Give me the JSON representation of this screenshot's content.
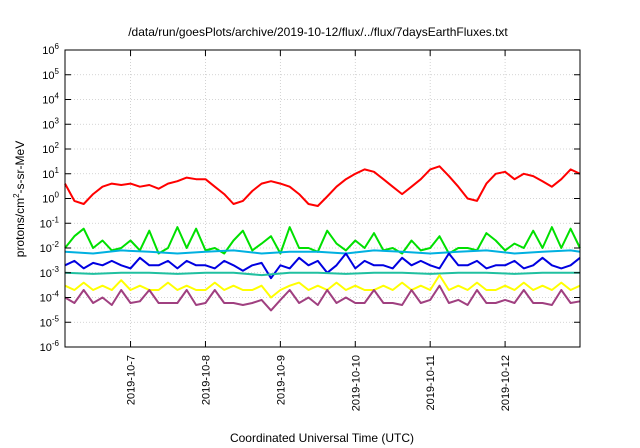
{
  "chart_data": {
    "type": "line",
    "title": "/data/run/goesPlots/archive/2019-10-12/flux/../flux/7daysEarthFluxes.txt",
    "xlabel": "Coordinated Universal Time (UTC)",
    "ylabel": {
      "prefix": "protons/cm",
      "sup": "2",
      "suffix": "-s-sr-MeV"
    },
    "yscale": "log",
    "ylim": [
      1e-06,
      1000000.0
    ],
    "xlim": [
      "2019-10-06T03:00",
      "2019-10-13T00:00"
    ],
    "x_tick_labels": [
      "2019-10-7",
      "2019-10-8",
      "2019-10-9",
      "2019-10-10",
      "2019-10-11",
      "2019-10-12"
    ],
    "y_tick_labels": [
      {
        "base": "10",
        "exp": "6"
      },
      {
        "base": "10",
        "exp": "5"
      },
      {
        "base": "10",
        "exp": "4"
      },
      {
        "base": "10",
        "exp": "3"
      },
      {
        "base": "10",
        "exp": "2"
      },
      {
        "base": "10",
        "exp": "1"
      },
      {
        "base": "10",
        "exp": "0"
      },
      {
        "base": "10",
        "exp": "-1"
      },
      {
        "base": "10",
        "exp": "-2"
      },
      {
        "base": "10",
        "exp": "-3"
      },
      {
        "base": "10",
        "exp": "-4"
      },
      {
        "base": "10",
        "exp": "-5"
      },
      {
        "base": "10",
        "exp": "-6"
      }
    ],
    "grid": true,
    "series": [
      {
        "color": "#ff0000",
        "x": [
          "2019-10-06T03:00",
          "2019-10-06T06:00",
          "2019-10-06T09:00",
          "2019-10-06T12:00",
          "2019-10-06T15:00",
          "2019-10-06T18:00",
          "2019-10-06T21:00",
          "2019-10-07T00:00",
          "2019-10-07T03:00",
          "2019-10-07T06:00",
          "2019-10-07T09:00",
          "2019-10-07T12:00",
          "2019-10-07T15:00",
          "2019-10-07T18:00",
          "2019-10-07T21:00",
          "2019-10-08T00:00",
          "2019-10-08T03:00",
          "2019-10-08T06:00",
          "2019-10-08T09:00",
          "2019-10-08T12:00",
          "2019-10-08T15:00",
          "2019-10-08T18:00",
          "2019-10-08T21:00",
          "2019-10-09T00:00",
          "2019-10-09T03:00",
          "2019-10-09T06:00",
          "2019-10-09T09:00",
          "2019-10-09T12:00",
          "2019-10-09T15:00",
          "2019-10-09T18:00",
          "2019-10-09T21:00",
          "2019-10-10T00:00",
          "2019-10-10T03:00",
          "2019-10-10T06:00",
          "2019-10-10T09:00",
          "2019-10-10T12:00",
          "2019-10-10T15:00",
          "2019-10-10T18:00",
          "2019-10-10T21:00",
          "2019-10-11T00:00",
          "2019-10-11T03:00",
          "2019-10-11T06:00",
          "2019-10-11T09:00",
          "2019-10-11T12:00",
          "2019-10-11T15:00",
          "2019-10-11T18:00",
          "2019-10-11T21:00",
          "2019-10-12T00:00",
          "2019-10-12T03:00",
          "2019-10-12T06:00",
          "2019-10-12T09:00",
          "2019-10-12T12:00",
          "2019-10-12T15:00",
          "2019-10-12T18:00",
          "2019-10-12T21:00",
          "2019-10-13T00:00"
        ],
        "y": [
          4,
          0.8,
          0.6,
          1.5,
          3,
          4,
          3.5,
          4,
          3,
          3.5,
          2.5,
          4,
          5,
          7,
          6,
          6,
          3,
          1.5,
          0.6,
          0.8,
          2,
          4,
          5,
          4,
          3,
          1.5,
          0.6,
          0.5,
          1.2,
          3,
          6,
          10,
          15,
          12,
          6,
          3,
          1.5,
          3,
          6,
          15,
          20,
          8,
          3,
          1,
          0.8,
          4,
          10,
          12,
          6,
          10,
          8,
          5,
          3,
          6,
          15,
          10
        ]
      },
      {
        "color": "#00e000",
        "x": [
          "2019-10-06T03:00",
          "2019-10-06T06:00",
          "2019-10-06T09:00",
          "2019-10-06T12:00",
          "2019-10-06T15:00",
          "2019-10-06T18:00",
          "2019-10-06T21:00",
          "2019-10-07T00:00",
          "2019-10-07T03:00",
          "2019-10-07T06:00",
          "2019-10-07T09:00",
          "2019-10-07T12:00",
          "2019-10-07T15:00",
          "2019-10-07T18:00",
          "2019-10-07T21:00",
          "2019-10-08T00:00",
          "2019-10-08T03:00",
          "2019-10-08T06:00",
          "2019-10-08T09:00",
          "2019-10-08T12:00",
          "2019-10-08T15:00",
          "2019-10-08T18:00",
          "2019-10-08T21:00",
          "2019-10-09T00:00",
          "2019-10-09T03:00",
          "2019-10-09T06:00",
          "2019-10-09T09:00",
          "2019-10-09T12:00",
          "2019-10-09T15:00",
          "2019-10-09T18:00",
          "2019-10-09T21:00",
          "2019-10-10T00:00",
          "2019-10-10T03:00",
          "2019-10-10T06:00",
          "2019-10-10T09:00",
          "2019-10-10T12:00",
          "2019-10-10T15:00",
          "2019-10-10T18:00",
          "2019-10-10T21:00",
          "2019-10-11T00:00",
          "2019-10-11T03:00",
          "2019-10-11T06:00",
          "2019-10-11T09:00",
          "2019-10-11T12:00",
          "2019-10-11T15:00",
          "2019-10-11T18:00",
          "2019-10-11T21:00",
          "2019-10-12T00:00",
          "2019-10-12T03:00",
          "2019-10-12T06:00",
          "2019-10-12T09:00",
          "2019-10-12T12:00",
          "2019-10-12T15:00",
          "2019-10-12T18:00",
          "2019-10-12T21:00",
          "2019-10-13T00:00"
        ],
        "y": [
          0.01,
          0.03,
          0.06,
          0.01,
          0.02,
          0.008,
          0.01,
          0.02,
          0.008,
          0.05,
          0.006,
          0.01,
          0.07,
          0.01,
          0.06,
          0.008,
          0.01,
          0.006,
          0.02,
          0.05,
          0.008,
          0.015,
          0.03,
          0.006,
          0.07,
          0.01,
          0.01,
          0.007,
          0.05,
          0.015,
          0.008,
          0.02,
          0.01,
          0.04,
          0.008,
          0.01,
          0.006,
          0.02,
          0.008,
          0.01,
          0.03,
          0.006,
          0.01,
          0.01,
          0.008,
          0.04,
          0.02,
          0.008,
          0.015,
          0.01,
          0.05,
          0.01,
          0.07,
          0.01,
          0.06,
          0.01
        ]
      },
      {
        "color": "#00b0e0",
        "x": [
          "2019-10-06T03:00",
          "2019-10-06T12:00",
          "2019-10-06T21:00",
          "2019-10-07T06:00",
          "2019-10-07T15:00",
          "2019-10-08T00:00",
          "2019-10-08T09:00",
          "2019-10-08T18:00",
          "2019-10-09T03:00",
          "2019-10-09T12:00",
          "2019-10-09T21:00",
          "2019-10-10T06:00",
          "2019-10-10T15:00",
          "2019-10-11T00:00",
          "2019-10-11T09:00",
          "2019-10-11T18:00",
          "2019-10-12T03:00",
          "2019-10-12T12:00",
          "2019-10-12T21:00",
          "2019-10-13T00:00"
        ],
        "y": [
          0.007,
          0.006,
          0.008,
          0.007,
          0.006,
          0.007,
          0.008,
          0.006,
          0.007,
          0.007,
          0.006,
          0.008,
          0.007,
          0.006,
          0.007,
          0.008,
          0.006,
          0.007,
          0.008,
          0.007
        ]
      },
      {
        "color": "#0000e0",
        "x": [
          "2019-10-06T03:00",
          "2019-10-06T06:00",
          "2019-10-06T09:00",
          "2019-10-06T12:00",
          "2019-10-06T15:00",
          "2019-10-06T18:00",
          "2019-10-06T21:00",
          "2019-10-07T00:00",
          "2019-10-07T03:00",
          "2019-10-07T06:00",
          "2019-10-07T09:00",
          "2019-10-07T12:00",
          "2019-10-07T15:00",
          "2019-10-07T18:00",
          "2019-10-07T21:00",
          "2019-10-08T00:00",
          "2019-10-08T03:00",
          "2019-10-08T06:00",
          "2019-10-08T09:00",
          "2019-10-08T12:00",
          "2019-10-08T15:00",
          "2019-10-08T18:00",
          "2019-10-08T21:00",
          "2019-10-09T00:00",
          "2019-10-09T03:00",
          "2019-10-09T06:00",
          "2019-10-09T09:00",
          "2019-10-09T12:00",
          "2019-10-09T15:00",
          "2019-10-09T18:00",
          "2019-10-09T21:00",
          "2019-10-10T00:00",
          "2019-10-10T03:00",
          "2019-10-10T06:00",
          "2019-10-10T09:00",
          "2019-10-10T12:00",
          "2019-10-10T15:00",
          "2019-10-10T18:00",
          "2019-10-10T21:00",
          "2019-10-11T00:00",
          "2019-10-11T03:00",
          "2019-10-11T06:00",
          "2019-10-11T09:00",
          "2019-10-11T12:00",
          "2019-10-11T15:00",
          "2019-10-11T18:00",
          "2019-10-11T21:00",
          "2019-10-12T00:00",
          "2019-10-12T03:00",
          "2019-10-12T06:00",
          "2019-10-12T09:00",
          "2019-10-12T12:00",
          "2019-10-12T15:00",
          "2019-10-12T18:00",
          "2019-10-12T21:00",
          "2019-10-13T00:00"
        ],
        "y": [
          0.002,
          0.003,
          0.0015,
          0.0025,
          0.002,
          0.003,
          0.002,
          0.0015,
          0.004,
          0.002,
          0.002,
          0.003,
          0.0015,
          0.003,
          0.002,
          0.002,
          0.0015,
          0.003,
          0.002,
          0.0012,
          0.002,
          0.0025,
          0.0006,
          0.002,
          0.0015,
          0.004,
          0.002,
          0.003,
          0.001,
          0.002,
          0.006,
          0.0015,
          0.003,
          0.002,
          0.002,
          0.0015,
          0.004,
          0.002,
          0.003,
          0.002,
          0.0015,
          0.006,
          0.002,
          0.002,
          0.003,
          0.0015,
          0.002,
          0.002,
          0.003,
          0.0015,
          0.002,
          0.004,
          0.002,
          0.0015,
          0.002,
          0.004
        ]
      },
      {
        "color": "#20c0a0",
        "x": [
          "2019-10-06T03:00",
          "2019-10-06T12:00",
          "2019-10-06T21:00",
          "2019-10-07T06:00",
          "2019-10-07T15:00",
          "2019-10-08T00:00",
          "2019-10-08T09:00",
          "2019-10-08T18:00",
          "2019-10-09T03:00",
          "2019-10-09T12:00",
          "2019-10-09T21:00",
          "2019-10-10T06:00",
          "2019-10-10T15:00",
          "2019-10-11T00:00",
          "2019-10-11T09:00",
          "2019-10-11T18:00",
          "2019-10-12T03:00",
          "2019-10-12T12:00",
          "2019-10-12T21:00",
          "2019-10-13T00:00"
        ],
        "y": [
          0.001,
          0.0009,
          0.001,
          0.001,
          0.0009,
          0.001,
          0.001,
          0.0008,
          0.001,
          0.001,
          0.0009,
          0.001,
          0.001,
          0.0009,
          0.001,
          0.001,
          0.0009,
          0.001,
          0.001,
          0.001
        ]
      },
      {
        "color": "#ffff00",
        "x": [
          "2019-10-06T03:00",
          "2019-10-06T06:00",
          "2019-10-06T09:00",
          "2019-10-06T12:00",
          "2019-10-06T15:00",
          "2019-10-06T18:00",
          "2019-10-06T21:00",
          "2019-10-07T00:00",
          "2019-10-07T03:00",
          "2019-10-07T06:00",
          "2019-10-07T09:00",
          "2019-10-07T12:00",
          "2019-10-07T15:00",
          "2019-10-07T18:00",
          "2019-10-07T21:00",
          "2019-10-08T00:00",
          "2019-10-08T03:00",
          "2019-10-08T06:00",
          "2019-10-08T09:00",
          "2019-10-08T12:00",
          "2019-10-08T15:00",
          "2019-10-08T18:00",
          "2019-10-08T21:00",
          "2019-10-09T00:00",
          "2019-10-09T03:00",
          "2019-10-09T06:00",
          "2019-10-09T09:00",
          "2019-10-09T12:00",
          "2019-10-09T15:00",
          "2019-10-09T18:00",
          "2019-10-09T21:00",
          "2019-10-10T00:00",
          "2019-10-10T03:00",
          "2019-10-10T06:00",
          "2019-10-10T09:00",
          "2019-10-10T12:00",
          "2019-10-10T15:00",
          "2019-10-10T18:00",
          "2019-10-10T21:00",
          "2019-10-11T00:00",
          "2019-10-11T03:00",
          "2019-10-11T06:00",
          "2019-10-11T09:00",
          "2019-10-11T12:00",
          "2019-10-11T15:00",
          "2019-10-11T18:00",
          "2019-10-11T21:00",
          "2019-10-12T00:00",
          "2019-10-12T03:00",
          "2019-10-12T06:00",
          "2019-10-12T09:00",
          "2019-10-12T12:00",
          "2019-10-12T15:00",
          "2019-10-12T18:00",
          "2019-10-12T21:00",
          "2019-10-13T00:00"
        ],
        "y": [
          0.0003,
          0.0002,
          0.0004,
          0.0002,
          0.0003,
          0.0002,
          0.0005,
          0.0002,
          0.0003,
          0.0002,
          0.0002,
          0.0004,
          0.0002,
          0.0003,
          0.0002,
          0.0002,
          0.0004,
          0.0002,
          0.0003,
          0.0002,
          0.0002,
          0.0003,
          0.0001,
          0.0002,
          0.0003,
          0.0004,
          0.0002,
          0.0003,
          0.0002,
          0.0004,
          0.0002,
          0.0003,
          0.0002,
          0.0002,
          0.0003,
          0.0002,
          0.0004,
          0.0002,
          0.0003,
          0.0002,
          0.0008,
          0.0002,
          0.0003,
          0.0002,
          0.0004,
          0.0002,
          0.0002,
          0.0003,
          0.0002,
          0.0004,
          0.0002,
          0.0003,
          0.0002,
          0.0004,
          0.0002,
          0.0003
        ]
      },
      {
        "color": "#a04080",
        "x": [
          "2019-10-06T03:00",
          "2019-10-06T06:00",
          "2019-10-06T09:00",
          "2019-10-06T12:00",
          "2019-10-06T15:00",
          "2019-10-06T18:00",
          "2019-10-06T21:00",
          "2019-10-07T00:00",
          "2019-10-07T03:00",
          "2019-10-07T06:00",
          "2019-10-07T09:00",
          "2019-10-07T12:00",
          "2019-10-07T15:00",
          "2019-10-07T18:00",
          "2019-10-07T21:00",
          "2019-10-08T00:00",
          "2019-10-08T03:00",
          "2019-10-08T06:00",
          "2019-10-08T09:00",
          "2019-10-08T12:00",
          "2019-10-08T15:00",
          "2019-10-08T18:00",
          "2019-10-08T21:00",
          "2019-10-09T00:00",
          "2019-10-09T03:00",
          "2019-10-09T06:00",
          "2019-10-09T09:00",
          "2019-10-09T12:00",
          "2019-10-09T15:00",
          "2019-10-09T18:00",
          "2019-10-09T21:00",
          "2019-10-10T00:00",
          "2019-10-10T03:00",
          "2019-10-10T06:00",
          "2019-10-10T09:00",
          "2019-10-10T12:00",
          "2019-10-10T15:00",
          "2019-10-10T18:00",
          "2019-10-10T21:00",
          "2019-10-11T00:00",
          "2019-10-11T03:00",
          "2019-10-11T06:00",
          "2019-10-11T09:00",
          "2019-10-11T12:00",
          "2019-10-11T15:00",
          "2019-10-11T18:00",
          "2019-10-11T21:00",
          "2019-10-12T00:00",
          "2019-10-12T03:00",
          "2019-10-12T06:00",
          "2019-10-12T09:00",
          "2019-10-12T12:00",
          "2019-10-12T15:00",
          "2019-10-12T18:00",
          "2019-10-12T21:00",
          "2019-10-13T00:00"
        ],
        "y": [
          0.0001,
          6e-05,
          0.0002,
          6e-05,
          0.0001,
          5e-05,
          0.0002,
          6e-05,
          7e-05,
          0.0002,
          6e-05,
          6e-05,
          6e-05,
          0.0002,
          5e-05,
          6e-05,
          0.0002,
          6e-05,
          6e-05,
          5e-05,
          6e-05,
          8e-05,
          3e-05,
          8e-05,
          0.0002,
          6e-05,
          0.0001,
          5e-05,
          0.0002,
          6e-05,
          0.0001,
          6e-05,
          6e-05,
          0.0002,
          6e-05,
          6e-05,
          5e-05,
          0.0002,
          6e-05,
          8e-05,
          0.0003,
          6e-05,
          8e-05,
          5e-05,
          0.0002,
          6e-05,
          6e-05,
          8e-05,
          6e-05,
          0.0002,
          6e-05,
          6e-05,
          5e-05,
          0.0002,
          6e-05,
          7e-05
        ]
      }
    ]
  }
}
